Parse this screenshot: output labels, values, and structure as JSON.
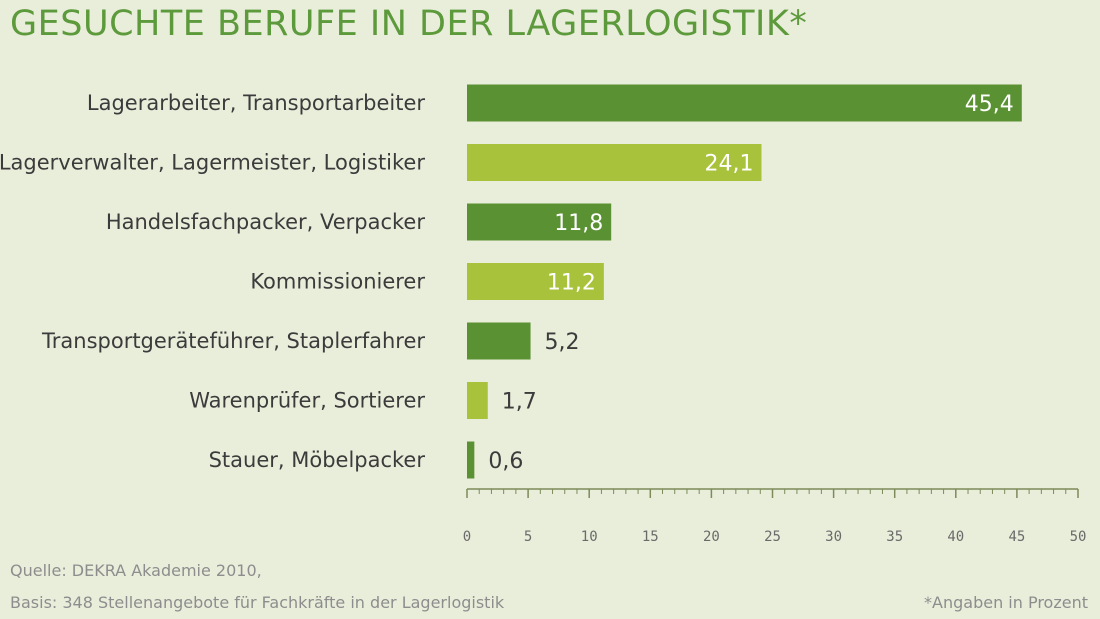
{
  "title": "GESUCHTE BERUFE IN DER LAGERLOGISTIK*",
  "colors": {
    "background": "#e9eedb",
    "title": "#5d9a3c",
    "bar_dark": "#5a9132",
    "bar_light": "#a9c23b",
    "axis": "#7d8a5a"
  },
  "chart_data": {
    "type": "bar",
    "orientation": "horizontal",
    "title": "GESUCHTE BERUFE IN DER LAGERLOGISTIK*",
    "xlabel": "",
    "ylabel": "",
    "xlim": [
      0,
      50
    ],
    "xticks": [
      0,
      5,
      10,
      15,
      20,
      25,
      30,
      35,
      40,
      45,
      50
    ],
    "grid": false,
    "categories": [
      "Lagerarbeiter, Transportarbeiter",
      "Lagerverwalter, Lagermeister, Logistiker",
      "Handelsfachpacker, Verpacker",
      "Kommissionierer",
      "Transportgeräteführer, Staplerfahrer",
      "Warenprüfer, Sortierer",
      "Stauer, Möbelpacker"
    ],
    "values": [
      45.4,
      24.1,
      11.8,
      11.2,
      5.2,
      1.7,
      0.6
    ],
    "value_labels": [
      "45,4",
      "24,1",
      "11,8",
      "11,2",
      "5,2",
      "1,7",
      "0,6"
    ],
    "bar_colors": [
      "#5a9132",
      "#a9c23b",
      "#5a9132",
      "#a9c23b",
      "#5a9132",
      "#a9c23b",
      "#5a9132"
    ],
    "tick_labels": [
      "0",
      "5",
      "10",
      "15",
      "20",
      "25",
      "30",
      "35",
      "40",
      "45",
      "50"
    ]
  },
  "footer": {
    "source": "Quelle: DEKRA Akademie 2010,",
    "basis": "Basis: 348 Stellenangebote für Fachkräfte in der Lagerlogistik",
    "note": "*Angaben in Prozent"
  }
}
